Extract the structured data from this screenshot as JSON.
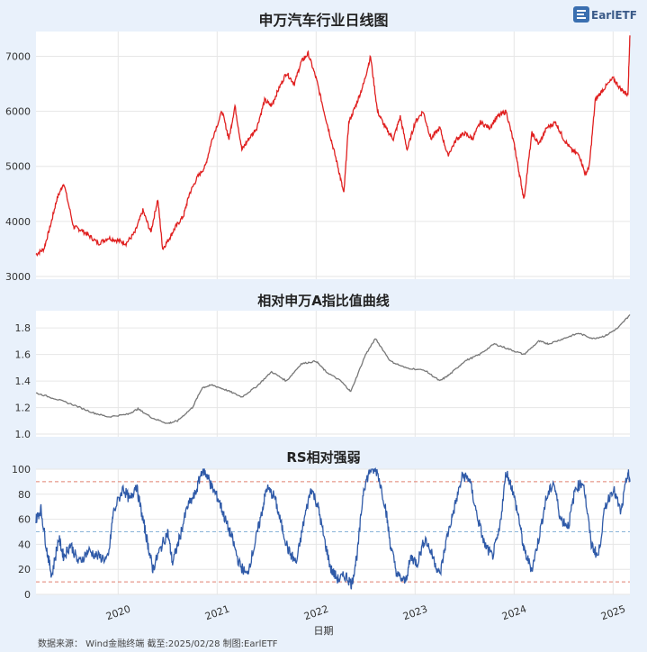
{
  "logo_text": "EarlETF",
  "footer": "数据来源：  Wind金融终端 截至:2025/02/28 制图:EarlETF",
  "chart_data": [
    {
      "type": "line",
      "title": "申万汽车行业日线图",
      "color": "#e02020",
      "ylim": [
        2950,
        7450
      ],
      "yticks": [
        3000,
        4000,
        5000,
        6000,
        7000
      ],
      "grid": true,
      "xlabel": "",
      "ylabel": "",
      "series": [
        {
          "x": [
            2019.17,
            2019.25,
            2019.32,
            2019.38,
            2019.45,
            2019.55,
            2019.62,
            2019.7,
            2019.8,
            2019.9,
            2020.0,
            2020.08,
            2020.17,
            2020.25,
            2020.33,
            2020.4,
            2020.45,
            2020.52,
            2020.58,
            2020.66,
            2020.72,
            2020.8,
            2020.88,
            2020.95,
            2021.05,
            2021.12,
            2021.18,
            2021.25,
            2021.32,
            2021.4,
            2021.48,
            2021.55,
            2021.62,
            2021.7,
            2021.78,
            2021.85,
            2021.92,
            2022.0,
            2022.08,
            2022.15,
            2022.22,
            2022.28,
            2022.33,
            2022.4,
            2022.48,
            2022.55,
            2022.62,
            2022.7,
            2022.78,
            2022.85,
            2022.92,
            2023.0,
            2023.08,
            2023.16,
            2023.25,
            2023.33,
            2023.42,
            2023.5,
            2023.58,
            2023.66,
            2023.75,
            2023.83,
            2023.92,
            2024.0,
            2024.05,
            2024.1,
            2024.18,
            2024.25,
            2024.33,
            2024.42,
            2024.5,
            2024.58,
            2024.66,
            2024.72,
            2024.76,
            2024.82,
            2024.9,
            2025.0,
            2025.08,
            2025.15,
            2025.17
          ],
          "y": [
            3400,
            3500,
            3950,
            4400,
            4700,
            3900,
            3850,
            3750,
            3600,
            3700,
            3650,
            3600,
            3800,
            4200,
            3800,
            4400,
            3500,
            3700,
            3900,
            4100,
            4500,
            4800,
            5000,
            5500,
            6000,
            5500,
            6100,
            5300,
            5500,
            5700,
            6200,
            6100,
            6400,
            6700,
            6500,
            6900,
            7050,
            6600,
            6000,
            5500,
            5000,
            4500,
            5800,
            6100,
            6500,
            7000,
            6000,
            5700,
            5500,
            5900,
            5300,
            5800,
            6000,
            5500,
            5700,
            5200,
            5500,
            5600,
            5500,
            5800,
            5700,
            5900,
            6000,
            5400,
            4900,
            4400,
            5600,
            5400,
            5700,
            5800,
            5500,
            5300,
            5200,
            4850,
            5000,
            6200,
            6400,
            6600,
            6400,
            6300,
            7380
          ]
        }
      ]
    },
    {
      "type": "line",
      "title": "相对申万A指比值曲线",
      "color": "#777777",
      "ylim": [
        0.98,
        1.93
      ],
      "yticks": [
        1.0,
        1.2,
        1.4,
        1.6,
        1.8
      ],
      "grid": true,
      "xlabel": "",
      "ylabel": "",
      "series": [
        {
          "x": [
            2019.17,
            2019.35,
            2019.55,
            2019.75,
            2019.9,
            2020.1,
            2020.2,
            2020.35,
            2020.5,
            2020.6,
            2020.75,
            2020.85,
            2020.95,
            2021.1,
            2021.25,
            2021.4,
            2021.55,
            2021.7,
            2021.85,
            2022.0,
            2022.1,
            2022.25,
            2022.35,
            2022.5,
            2022.6,
            2022.75,
            2022.9,
            2023.1,
            2023.25,
            2023.35,
            2023.5,
            2023.65,
            2023.8,
            2023.95,
            2024.1,
            2024.25,
            2024.35,
            2024.5,
            2024.65,
            2024.8,
            2024.92,
            2025.05,
            2025.17
          ],
          "y": [
            1.31,
            1.27,
            1.22,
            1.16,
            1.13,
            1.15,
            1.19,
            1.12,
            1.08,
            1.1,
            1.2,
            1.35,
            1.37,
            1.33,
            1.28,
            1.36,
            1.47,
            1.4,
            1.53,
            1.55,
            1.47,
            1.4,
            1.32,
            1.6,
            1.72,
            1.55,
            1.5,
            1.48,
            1.4,
            1.45,
            1.55,
            1.6,
            1.68,
            1.64,
            1.6,
            1.7,
            1.68,
            1.72,
            1.76,
            1.72,
            1.74,
            1.8,
            1.9
          ]
        }
      ]
    },
    {
      "type": "line",
      "title": "RS相对强弱",
      "color": "#2f5aa8",
      "ylim": [
        0,
        100
      ],
      "yticks": [
        0,
        20,
        40,
        60,
        80,
        100
      ],
      "grid": true,
      "xlabel": "日期",
      "ylabel": "",
      "reference_lines": [
        {
          "value": 90,
          "color": "#e08070"
        },
        {
          "value": 50,
          "color": "#8ab4d8"
        },
        {
          "value": 10,
          "color": "#e08070"
        }
      ],
      "xticks": [
        2020,
        2021,
        2022,
        2023,
        2024,
        2025
      ],
      "xtick_labels": [
        "2020",
        "2021",
        "2022",
        "2023",
        "2024",
        "2025"
      ],
      "series": [
        {
          "x": [
            2019.17,
            2019.22,
            2019.28,
            2019.33,
            2019.4,
            2019.45,
            2019.52,
            2019.6,
            2019.7,
            2019.8,
            2019.9,
            2019.95,
            2020.05,
            2020.12,
            2020.18,
            2020.25,
            2020.3,
            2020.35,
            2020.42,
            2020.5,
            2020.55,
            2020.62,
            2020.7,
            2020.78,
            2020.85,
            2020.9,
            2020.95,
            2021.02,
            2021.08,
            2021.15,
            2021.22,
            2021.3,
            2021.38,
            2021.45,
            2021.5,
            2021.58,
            2021.65,
            2021.72,
            2021.8,
            2021.88,
            2021.95,
            2022.02,
            2022.08,
            2022.15,
            2022.22,
            2022.3,
            2022.36,
            2022.42,
            2022.48,
            2022.55,
            2022.62,
            2022.7,
            2022.75,
            2022.82,
            2022.9,
            2022.96,
            2023.02,
            2023.1,
            2023.18,
            2023.25,
            2023.32,
            2023.4,
            2023.48,
            2023.55,
            2023.62,
            2023.7,
            2023.78,
            2023.85,
            2023.92,
            2023.98,
            2024.05,
            2024.1,
            2024.18,
            2024.25,
            2024.32,
            2024.4,
            2024.47,
            2024.55,
            2024.62,
            2024.7,
            2024.78,
            2024.85,
            2024.92,
            2025.0,
            2025.08,
            2025.15,
            2025.17
          ],
          "y": [
            60,
            68,
            35,
            15,
            45,
            30,
            40,
            25,
            35,
            30,
            28,
            65,
            85,
            75,
            88,
            60,
            40,
            20,
            35,
            50,
            25,
            45,
            70,
            80,
            100,
            95,
            85,
            75,
            60,
            45,
            25,
            15,
            40,
            65,
            85,
            78,
            55,
            35,
            25,
            60,
            85,
            70,
            45,
            20,
            12,
            15,
            8,
            35,
            85,
            100,
            98,
            70,
            40,
            15,
            10,
            30,
            25,
            45,
            30,
            15,
            45,
            70,
            95,
            92,
            65,
            40,
            30,
            50,
            98,
            85,
            60,
            35,
            20,
            45,
            75,
            90,
            60,
            55,
            85,
            90,
            40,
            30,
            70,
            85,
            65,
            98,
            90
          ]
        }
      ]
    }
  ]
}
